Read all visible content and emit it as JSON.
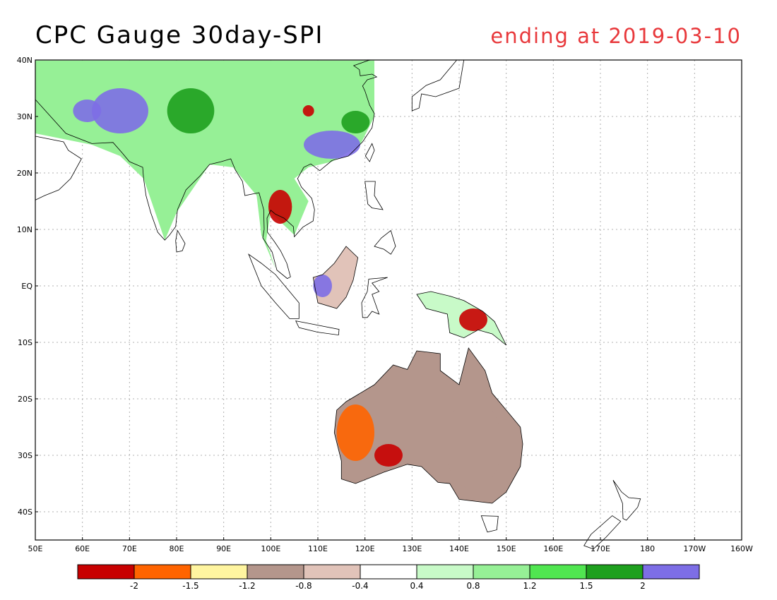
{
  "title": "CPC Gauge 30day-SPI",
  "subtitle": "ending at 2019-03-10",
  "colors": {
    "title": "#000000",
    "subtitle": "#e8383b",
    "frame": "#000000",
    "grid": "#b0b0b0",
    "coastline": "#000000"
  },
  "map": {
    "projection": "lat-lon",
    "lon_range": [
      50,
      200
    ],
    "lat_range": [
      -45,
      40
    ],
    "grid": "dotted every 10 degrees",
    "x_ticks": [
      {
        "lon": 50,
        "label": "50E"
      },
      {
        "lon": 60,
        "label": "60E"
      },
      {
        "lon": 70,
        "label": "70E"
      },
      {
        "lon": 80,
        "label": "80E"
      },
      {
        "lon": 90,
        "label": "90E"
      },
      {
        "lon": 100,
        "label": "100E"
      },
      {
        "lon": 110,
        "label": "110E"
      },
      {
        "lon": 120,
        "label": "120E"
      },
      {
        "lon": 130,
        "label": "130E"
      },
      {
        "lon": 140,
        "label": "140E"
      },
      {
        "lon": 150,
        "label": "150E"
      },
      {
        "lon": 160,
        "label": "160E"
      },
      {
        "lon": 170,
        "label": "170E"
      },
      {
        "lon": 180,
        "label": "180"
      },
      {
        "lon": 190,
        "label": "170W"
      },
      {
        "lon": 200,
        "label": "160W"
      }
    ],
    "y_ticks": [
      {
        "lat": 40,
        "label": "40N"
      },
      {
        "lat": 30,
        "label": "30N"
      },
      {
        "lat": 20,
        "label": "20N"
      },
      {
        "lat": 10,
        "label": "10N"
      },
      {
        "lat": 0,
        "label": "EQ"
      },
      {
        "lat": -10,
        "label": "10S"
      },
      {
        "lat": -20,
        "label": "20S"
      },
      {
        "lat": -30,
        "label": "30S"
      },
      {
        "lat": -40,
        "label": "40S"
      }
    ]
  },
  "legend": {
    "bins": [
      {
        "color": "#c80000"
      },
      {
        "color": "#ff6400"
      },
      {
        "color": "#fff5a0"
      },
      {
        "color": "#b4968c"
      },
      {
        "color": "#e1c3b9"
      },
      {
        "color": "#ffffff"
      },
      {
        "color": "#c8fac8"
      },
      {
        "color": "#96f096"
      },
      {
        "color": "#50e650"
      },
      {
        "color": "#1ea01e"
      },
      {
        "color": "#7d6ee6"
      }
    ],
    "labels": [
      "-2",
      "-1.5",
      "-1.2",
      "-0.8",
      "-0.4",
      "0.4",
      "0.8",
      "1.2",
      "1.5",
      "2"
    ]
  },
  "regions": [
    {
      "name": "tibet-wet",
      "color": "#7d6ee6",
      "lon": 68,
      "lat": 31,
      "rx": 6,
      "ry": 4
    },
    {
      "name": "pakistan-wet",
      "color": "#7d6ee6",
      "lon": 61,
      "lat": 31,
      "rx": 3,
      "ry": 2
    },
    {
      "name": "south-china-wet",
      "color": "#7d6ee6",
      "lon": 113,
      "lat": 25,
      "rx": 6,
      "ry": 2.5
    },
    {
      "name": "borneo-wet",
      "color": "#7d6ee6",
      "lon": 111,
      "lat": 0,
      "rx": 2,
      "ry": 2
    },
    {
      "name": "china-green",
      "color": "#1ea01e",
      "lon": 83,
      "lat": 31,
      "rx": 5,
      "ry": 4
    },
    {
      "name": "east-china-green",
      "color": "#1ea01e",
      "lon": 118,
      "lat": 29,
      "rx": 3,
      "ry": 2
    },
    {
      "name": "central-china-red",
      "color": "#c80000",
      "lon": 108,
      "lat": 31,
      "rx": 1.2,
      "ry": 1
    },
    {
      "name": "thailand-red",
      "color": "#c80000",
      "lon": 102,
      "lat": 14,
      "rx": 2.5,
      "ry": 3
    },
    {
      "name": "png-red",
      "color": "#c80000",
      "lon": 143,
      "lat": -6,
      "rx": 3,
      "ry": 2
    },
    {
      "name": "nw-australia-orange",
      "color": "#ff6400",
      "lon": 118,
      "lat": -26,
      "rx": 4,
      "ry": 5
    },
    {
      "name": "sw-australia-red",
      "color": "#c80000",
      "lon": 125,
      "lat": -30,
      "rx": 3,
      "ry": 2
    },
    {
      "name": "se-australia-brown",
      "color": "#b4968c",
      "lon": 143,
      "lat": -28,
      "rx": 6,
      "ry": 8
    }
  ]
}
